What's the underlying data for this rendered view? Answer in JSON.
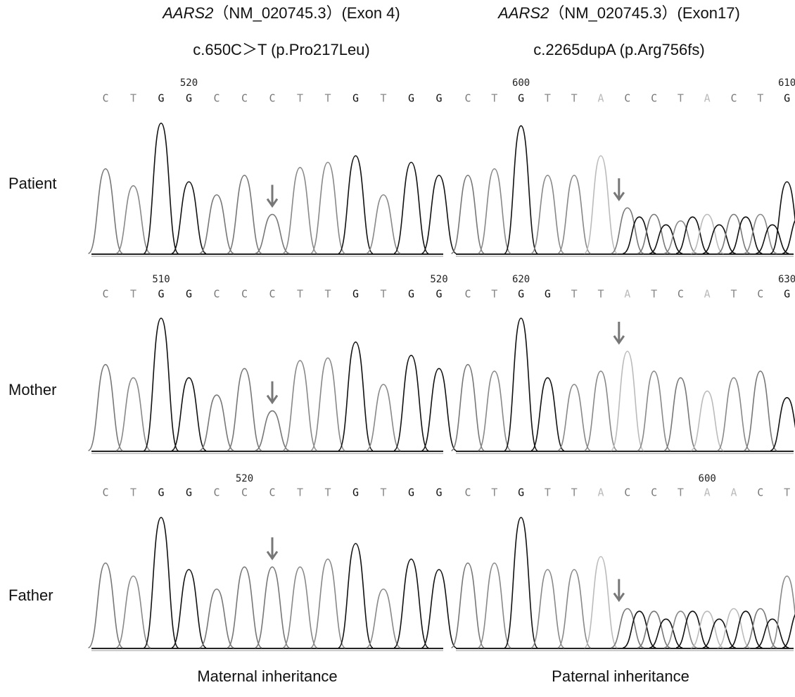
{
  "rows": [
    "Patient",
    "Mother",
    "Father"
  ],
  "columns": [
    {
      "gene": "AARS2",
      "detail": "（NM_020745.3）(Exon 4)",
      "variant": "c.650C＞T (p.Pro217Leu)",
      "inheritance": "Maternal inheritance",
      "panels": [
        {
          "bases": [
            "C",
            "T",
            "G",
            "G",
            "C",
            "C",
            "C",
            "T",
            "T",
            "G",
            "T",
            "G",
            "G"
          ],
          "numbers": [
            null,
            null,
            null,
            520,
            null,
            null,
            null,
            null,
            null,
            null,
            null,
            null,
            null
          ]
        },
        {
          "bases": [
            "C",
            "T",
            "G",
            "G",
            "C",
            "C",
            "C",
            "T",
            "T",
            "G",
            "T",
            "G",
            "G"
          ],
          "numbers": [
            null,
            null,
            510,
            null,
            null,
            null,
            null,
            null,
            null,
            null,
            null,
            null,
            520
          ]
        },
        {
          "bases": [
            "C",
            "T",
            "G",
            "G",
            "C",
            "C",
            "C",
            "T",
            "T",
            "G",
            "T",
            "G",
            "G"
          ],
          "numbers": [
            null,
            null,
            null,
            null,
            null,
            520,
            null,
            null,
            null,
            null,
            null,
            null,
            null
          ]
        }
      ]
    },
    {
      "gene": "AARS2",
      "detail": "（NM_020745.3）(Exon17)",
      "variant": "c.2265dupA (p.Arg756fs)",
      "inheritance": "Paternal inheritance",
      "panels": [
        {
          "bases": [
            "C",
            "T",
            "G",
            "T",
            "T",
            "A",
            "C",
            "C",
            "T",
            "A",
            "C",
            "T",
            "G"
          ],
          "numbers": [
            null,
            null,
            600,
            null,
            null,
            null,
            null,
            null,
            null,
            null,
            null,
            null,
            610
          ]
        },
        {
          "bases": [
            "C",
            "T",
            "G",
            "G",
            "T",
            "T",
            "A",
            "T",
            "C",
            "A",
            "T",
            "C",
            "G"
          ],
          "numbers": [
            null,
            null,
            620,
            null,
            null,
            null,
            null,
            null,
            null,
            null,
            null,
            null,
            630
          ]
        },
        {
          "bases": [
            "C",
            "T",
            "G",
            "T",
            "T",
            "A",
            "C",
            "C",
            "T",
            "A",
            "A",
            "C",
            "T"
          ],
          "numbers": [
            null,
            null,
            null,
            null,
            null,
            null,
            null,
            null,
            null,
            600,
            null,
            null,
            null
          ]
        }
      ]
    }
  ]
}
